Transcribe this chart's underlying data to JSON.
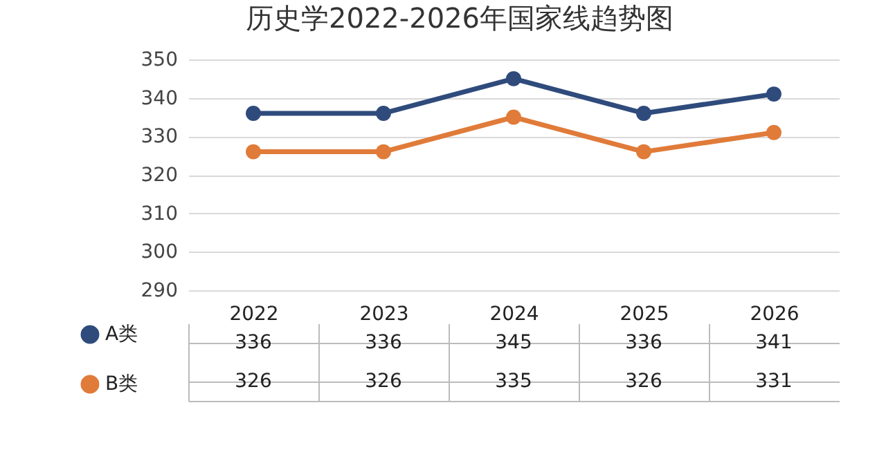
{
  "chart_data": {
    "type": "line",
    "title": "历史学2022-2026年国家线趋势图",
    "categories": [
      "2022",
      "2023",
      "2024",
      "2025",
      "2026"
    ],
    "series": [
      {
        "name": "A类",
        "color": "#2f4b7c",
        "values": [
          336,
          336,
          345,
          336,
          341
        ]
      },
      {
        "name": "B类",
        "color": "#e07b39",
        "values": [
          326,
          326,
          335,
          326,
          331
        ]
      }
    ],
    "ylim": [
      290,
      350
    ],
    "yticks": [
      290,
      300,
      310,
      320,
      330,
      340,
      350
    ],
    "grid": "y",
    "marker": "circle",
    "data_labels": true,
    "legend": "bottom left"
  }
}
